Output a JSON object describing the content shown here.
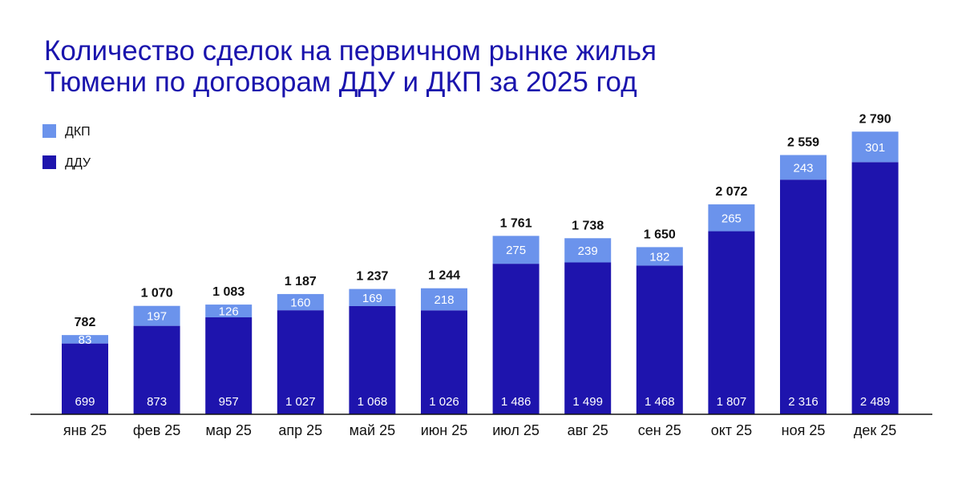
{
  "chart_data": {
    "type": "bar",
    "stacked": true,
    "title": [
      "Количество сделок на первичном рынке жилья",
      "Тюмени по договорам ДДУ и ДКП за 2025 год"
    ],
    "categories": [
      "янв 25",
      "фев 25",
      "мар 25",
      "апр 25",
      "май 25",
      "июн 25",
      "июл 25",
      "авг 25",
      "сен 25",
      "окт 25",
      "ноя 25",
      "дек 25"
    ],
    "series": [
      {
        "name": "ДДУ",
        "color": "#1e14ad",
        "values": [
          699,
          873,
          957,
          1027,
          1068,
          1026,
          1486,
          1499,
          1468,
          1807,
          2316,
          2489
        ],
        "labels": [
          "699",
          "873",
          "957",
          "1 027",
          "1 068",
          "1 026",
          "1 486",
          "1 499",
          "1 468",
          "1 807",
          "2 316",
          "2 489"
        ]
      },
      {
        "name": "ДКП",
        "color": "#6b93ec",
        "values": [
          83,
          197,
          126,
          160,
          169,
          218,
          275,
          239,
          182,
          265,
          243,
          301
        ],
        "labels": [
          "83",
          "197",
          "126",
          "160",
          "169",
          "218",
          "275",
          "239",
          "182",
          "265",
          "243",
          "301"
        ]
      }
    ],
    "totals": [
      782,
      1070,
      1083,
      1187,
      1237,
      1244,
      1761,
      1738,
      1650,
      2072,
      2559,
      2790
    ],
    "total_labels": [
      "782",
      "1 070",
      "1 083",
      "1 187",
      "1 237",
      "1 244",
      "1 761",
      "1 738",
      "1 650",
      "2 072",
      "2 559",
      "2 790"
    ],
    "ylim": [
      0,
      2800
    ],
    "grid": false,
    "legend": {
      "position": "top-left",
      "items": [
        {
          "name": "ДКП",
          "color": "#6b93ec"
        },
        {
          "name": "ДДУ",
          "color": "#1e14ad"
        }
      ]
    },
    "xlabel": "",
    "ylabel": ""
  }
}
